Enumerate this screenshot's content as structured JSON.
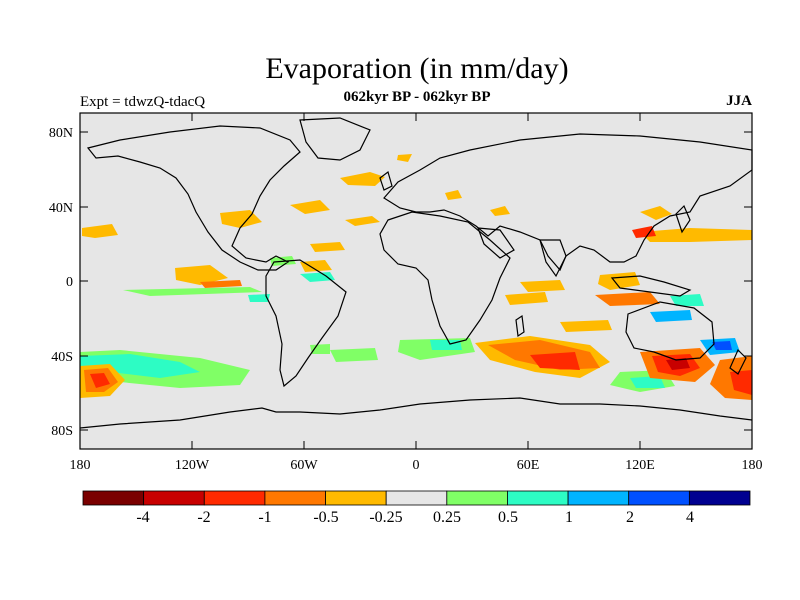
{
  "title": "Evaporation (in mm/day)",
  "experiment": "Expt = tdwzQ-tdacQ",
  "subtitle": "062kyr BP - 062kyr BP",
  "season": "JJA",
  "map": {
    "background_color": "#e6e6e6",
    "lat_ticks": [
      "80N",
      "40N",
      "0",
      "40S",
      "80S"
    ],
    "lon_ticks": [
      "180",
      "120W",
      "60W",
      "0",
      "60E",
      "120E",
      "180"
    ]
  },
  "colorbar": {
    "colors": [
      "#7a0000",
      "#c80000",
      "#ff2a00",
      "#ff7800",
      "#ffba00",
      "#e6e6e6",
      "#80ff66",
      "#2dfcc4",
      "#00b4ff",
      "#0050ff",
      "#000090"
    ],
    "labels": [
      "-4",
      "-2",
      "-1",
      "-0.5",
      "-0.25",
      "0.25",
      "0.5",
      "1",
      "2",
      "4"
    ]
  }
}
